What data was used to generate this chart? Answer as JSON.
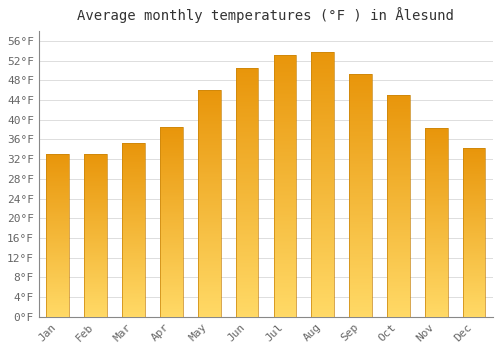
{
  "title": "Average monthly temperatures (°F ) in Ålesund",
  "months": [
    "Jan",
    "Feb",
    "Mar",
    "Apr",
    "May",
    "Jun",
    "Jul",
    "Aug",
    "Sep",
    "Oct",
    "Nov",
    "Dec"
  ],
  "values": [
    33.1,
    33.1,
    35.2,
    38.5,
    46.0,
    50.4,
    53.2,
    53.8,
    49.3,
    45.1,
    38.3,
    34.2
  ],
  "bar_color_bottom": "#FFD966",
  "bar_color_top": "#E8950A",
  "bar_edge_color": "#C8830A",
  "yticks": [
    0,
    4,
    8,
    12,
    16,
    20,
    24,
    28,
    32,
    36,
    40,
    44,
    48,
    52,
    56
  ],
  "ylim": [
    0,
    58
  ],
  "background_color": "#FFFFFF",
  "grid_color": "#DDDDDD",
  "title_fontsize": 10,
  "tick_fontsize": 8,
  "font_family": "monospace"
}
